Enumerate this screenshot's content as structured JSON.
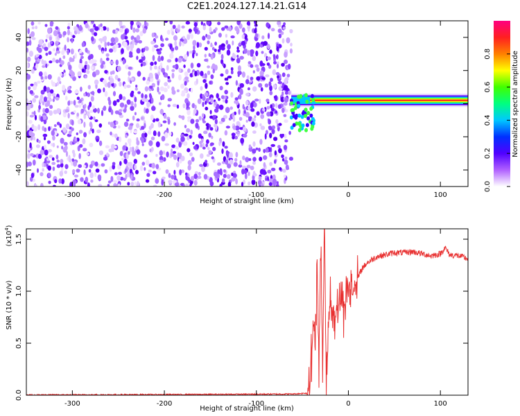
{
  "chart_data": [
    {
      "type": "heatmap",
      "title": "C2E1.2024.127.14.21.G14",
      "xlabel": "Height of straight line (km)",
      "ylabel": "Frequency (Hz)",
      "xlim": [
        -350,
        130
      ],
      "ylim": [
        -50,
        50
      ],
      "xticks": [
        -300,
        -200,
        -100,
        0,
        100
      ],
      "yticks": [
        -40,
        -20,
        0,
        20,
        40
      ],
      "colorbar": {
        "label": "Normalized spectral amplitude",
        "range": [
          0.0,
          1.0
        ],
        "ticks": [
          "0.0",
          "0.2",
          "0.4",
          "0.6",
          "0.8"
        ],
        "colors": [
          "#ffffff",
          "#b060ff",
          "#5000ff",
          "#0030ff",
          "#00c8ff",
          "#00ff80",
          "#40ff00",
          "#ffff00",
          "#ff8000",
          "#ff2020",
          "#ff0080"
        ]
      },
      "description_regions": {
        "noise_region_x": [
          -350,
          -62
        ],
        "signal_track_x": [
          -62,
          130
        ],
        "signal_track_frequency": 2
      }
    },
    {
      "type": "line",
      "xlabel": "Height of straight line (km)",
      "ylabel": "SNR (10 * v/v)",
      "yscale_label": "(x10",
      "yscale_exp": "4",
      "yscale_close": ")",
      "xlim": [
        -350,
        130
      ],
      "ylim": [
        0,
        1.6
      ],
      "xticks": [
        -300,
        -200,
        -100,
        0,
        100
      ],
      "yticks": [
        "0.0",
        "0.5",
        "1.0",
        "1.5"
      ],
      "line_color": "#e83030",
      "series": [
        {
          "x": [
            -350,
            -300,
            -250,
            -200,
            -150,
            -100,
            -60,
            -45,
            -42,
            -40,
            -38,
            -36,
            -34,
            -32,
            -30,
            -28,
            -26,
            -24,
            -22,
            -20,
            -15,
            -10,
            -5,
            0,
            5,
            10,
            15,
            20,
            25,
            30,
            40,
            50,
            60,
            70,
            80,
            90,
            100,
            105,
            110,
            120,
            130
          ],
          "values": [
            0.003,
            0.004,
            0.005,
            0.006,
            0.008,
            0.01,
            0.012,
            0.02,
            0.15,
            0.35,
            0.75,
            0.4,
            1.2,
            0.2,
            1.45,
            0.35,
            1.6,
            0.1,
            0.6,
            0.9,
            0.75,
            0.95,
            0.85,
            1.05,
            1.0,
            1.12,
            1.22,
            1.27,
            1.3,
            1.33,
            1.35,
            1.37,
            1.37,
            1.38,
            1.36,
            1.34,
            1.36,
            1.42,
            1.35,
            1.34,
            1.31
          ]
        }
      ]
    }
  ]
}
